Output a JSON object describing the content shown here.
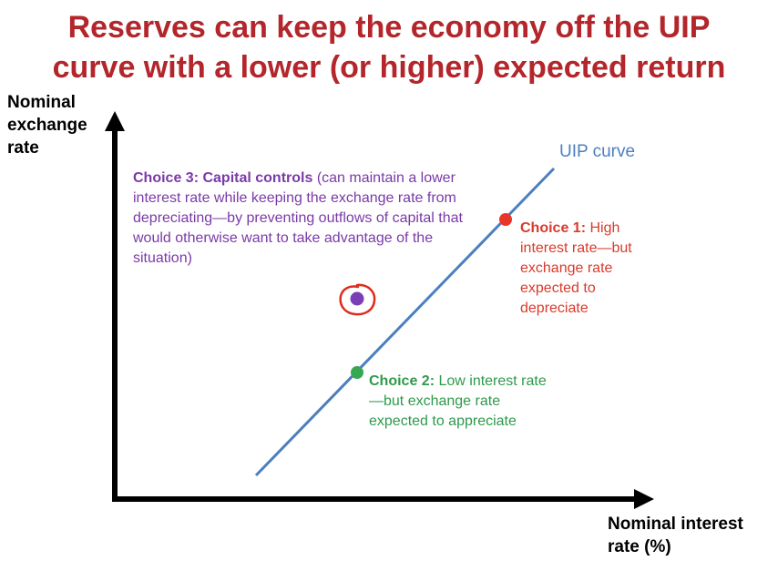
{
  "title": {
    "line1": "Reserves can keep the economy off the UIP",
    "line2": "curve with a lower (or higher) expected return"
  },
  "axes": {
    "y_label_lines": [
      "Nominal",
      "exchange",
      "rate"
    ],
    "x_label_lines": [
      "Nominal interest",
      "rate (%)"
    ]
  },
  "curve": {
    "label": "UIP curve",
    "color": "#4c7fbf"
  },
  "choices": {
    "choice1": {
      "heading": "Choice 1:",
      "text": " High interest rate—but exchange rate expected to depreciate",
      "color": "#e8362a"
    },
    "choice2": {
      "heading": "Choice 2:",
      "text": " Low interest rate—but exchange rate expected to appreciate",
      "color": "#36a852"
    },
    "choice3": {
      "heading": "Choice 3: Capital controls",
      "text": " (can maintain a lower interest rate while keeping the exchange rate from depreciating—by preventing outflows of capital that would otherwise want to take advantage of the situation)",
      "color": "#7b3fb5",
      "circle_color": "#e02a1f"
    }
  },
  "colors": {
    "title": "#b3262b",
    "axes": "#000000"
  }
}
